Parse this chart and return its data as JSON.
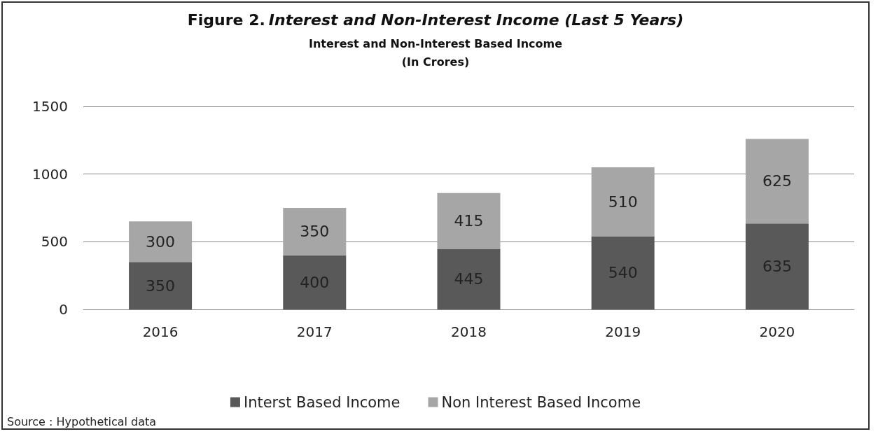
{
  "chart_data": {
    "type": "bar",
    "title": "Figure 2. Interest and Non-Interest Income (Last 5 Years)",
    "subtitle": "Interest and Non-Interest Based Income\n(In Crores)",
    "categories": [
      "2016",
      "2017",
      "2018",
      "2019",
      "2020"
    ],
    "series": [
      {
        "name": "Interst Based Income",
        "color": "#595959",
        "values": [
          350,
          400,
          445,
          540,
          635
        ]
      },
      {
        "name": "Non Interest Based Income",
        "color": "#a6a6a6",
        "values": [
          300,
          350,
          415,
          510,
          625
        ]
      }
    ],
    "stacked": true,
    "data_labels": true,
    "ylim": [
      0,
      1500
    ],
    "yticks": [
      0,
      500,
      1000,
      1500
    ],
    "grid": "y",
    "legend": "bottom",
    "annotations": [
      "Source : Hypothetical data"
    ]
  }
}
